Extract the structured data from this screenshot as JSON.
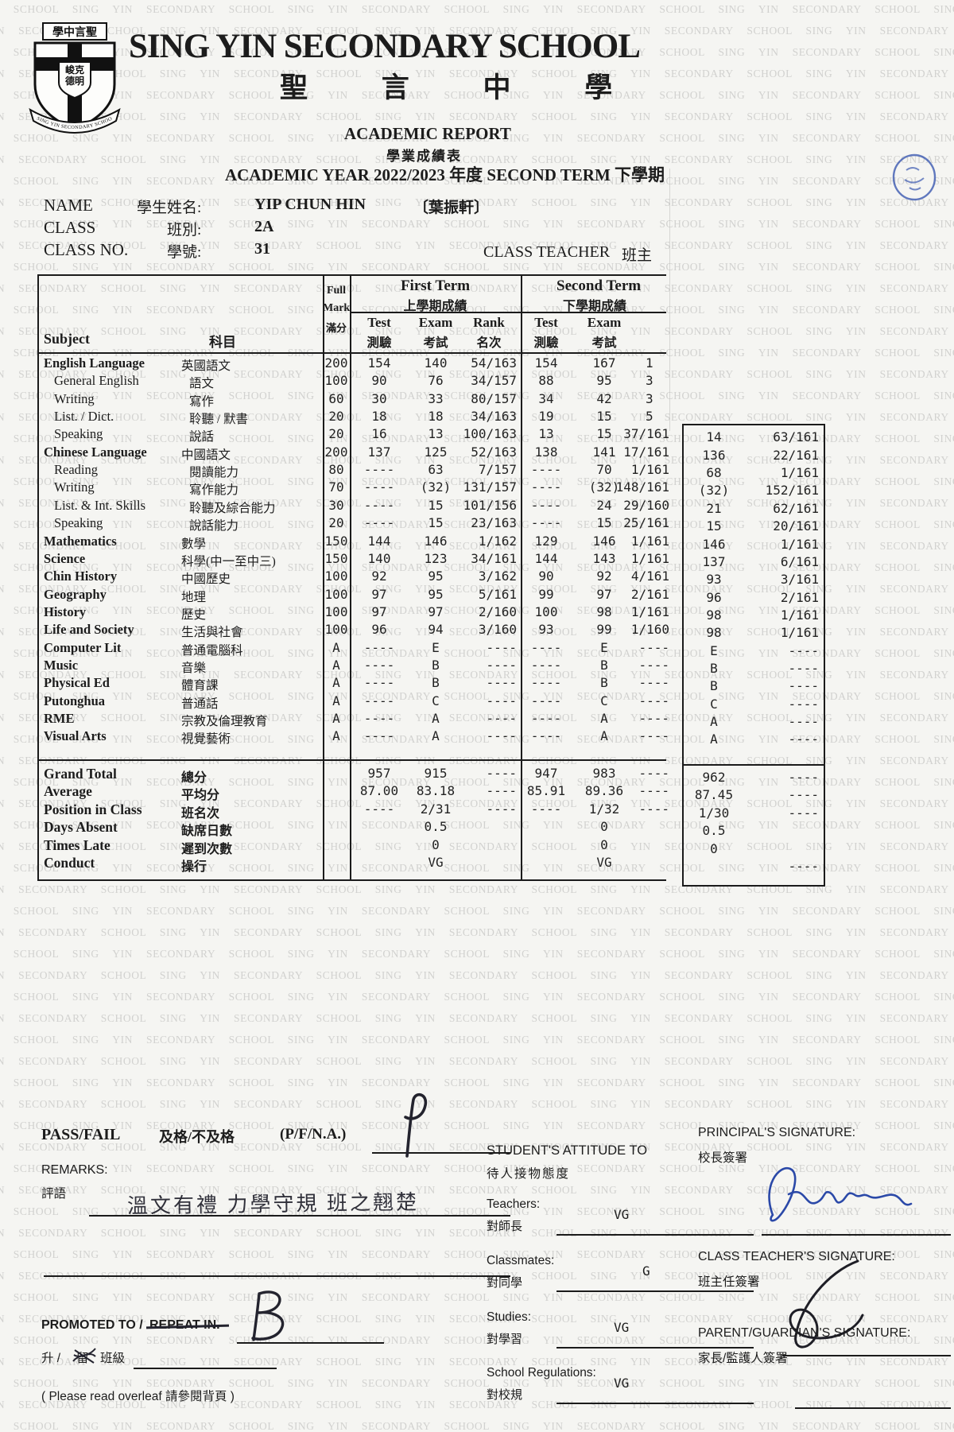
{
  "watermark_text": "SING YIN SECONDARY SCHOOL",
  "header": {
    "school_name_en": "SING YIN SECONDARY SCHOOL",
    "school_name_zh": "聖 言 中 學",
    "crest": {
      "banner_text": "學中言聖",
      "motto_line1": "峻克",
      "motto_line2": "德明",
      "ribbon_text": "SING YIN SECONDARY SCHOOL"
    },
    "report_title_en": "ACADEMIC REPORT",
    "report_title_zh": "學業成績表",
    "year_line": "ACADEMIC YEAR 2022/2023 年度 SECOND TERM 下學期",
    "stamp_color": "#3b59b0"
  },
  "student": {
    "name_label_en": "NAME",
    "name_label_zh": "學生姓名:",
    "name_value": "YIP CHUN HIN",
    "name_value_zh": "〔葉振軒〕",
    "class_label_en": "CLASS",
    "class_label_zh": "班別:",
    "class_value": "2A",
    "class_no_label_en": "CLASS NO.",
    "class_no_label_zh": "學號:",
    "class_no_value": "31",
    "class_teacher_label_en": "CLASS TEACHER",
    "class_teacher_label_zh": "班主"
  },
  "table": {
    "headers": {
      "subject_en": "Subject",
      "subject_zh": "科目",
      "full_1": "Full",
      "full_2": "Mark",
      "full_3": "滿分",
      "first_term_en": "First Term",
      "first_term_zh": "上學期成績",
      "second_term_en": "Second Term",
      "second_term_zh": "下學期成績",
      "test_en": "Test",
      "test_zh": "測驗",
      "exam_en": "Exam",
      "exam_zh": "考試",
      "rank_en": "Rank",
      "rank_zh": "名次"
    },
    "rows": [
      {
        "en": "English Language",
        "zh": "英國語文",
        "bold": true,
        "full": "200",
        "ft": [
          "154",
          "140",
          "54/163"
        ],
        "st": [
          "154",
          "167",
          "1"
        ],
        "st_cut": true,
        "ov": [
          "",
          ""
        ]
      },
      {
        "en": "General English",
        "zh": "語文",
        "bold": false,
        "full": "100",
        "ft": [
          "90",
          "76",
          "34/157"
        ],
        "st": [
          "88",
          "95",
          "3"
        ],
        "st_cut": true,
        "ov": [
          "",
          ""
        ]
      },
      {
        "en": "Writing",
        "zh": "寫作",
        "bold": false,
        "full": "60",
        "ft": [
          "30",
          "33",
          "80/157"
        ],
        "st": [
          "34",
          "42",
          "3"
        ],
        "st_cut": true,
        "ov": [
          "",
          ""
        ]
      },
      {
        "en": "List. / Dict.",
        "zh": "聆聽 / 默書",
        "bold": false,
        "full": "20",
        "ft": [
          "18",
          "18",
          "34/163"
        ],
        "st": [
          "19",
          "15",
          "5"
        ],
        "st_cut": true,
        "ov": [
          "",
          ""
        ]
      },
      {
        "en": "Speaking",
        "zh": "說話",
        "bold": false,
        "full": "20",
        "ft": [
          "16",
          "13",
          "100/163"
        ],
        "st": [
          "13",
          "15",
          "37/161"
        ],
        "st_cut": false,
        "ov": [
          "14",
          "63/161"
        ]
      },
      {
        "en": "Chinese Language",
        "zh": "中國語文",
        "bold": true,
        "full": "200",
        "ft": [
          "137",
          "125",
          "52/163"
        ],
        "st": [
          "138",
          "141",
          "17/161"
        ],
        "st_cut": false,
        "ov": [
          "136",
          "22/161"
        ]
      },
      {
        "en": "Reading",
        "zh": "閱讀能力",
        "bold": false,
        "full": "80",
        "ft": [
          "----",
          "63",
          "7/157"
        ],
        "st": [
          "----",
          "70",
          "1/161"
        ],
        "st_cut": false,
        "ov": [
          "68",
          "1/161"
        ]
      },
      {
        "en": "Writing",
        "zh": "寫作能力",
        "bold": false,
        "full": "70",
        "ft": [
          "----",
          "(32)",
          "131/157"
        ],
        "st": [
          "----",
          "(32)",
          "148/161"
        ],
        "st_cut": false,
        "ov": [
          "(32)",
          "152/161"
        ]
      },
      {
        "en": "List. & Int. Skills",
        "zh": "聆聽及綜合能力",
        "bold": false,
        "full": "30",
        "ft": [
          "----",
          "15",
          "101/156"
        ],
        "st": [
          "----",
          "24",
          "29/160"
        ],
        "st_cut": false,
        "ov": [
          "21",
          "62/161"
        ]
      },
      {
        "en": "Speaking",
        "zh": "說話能力",
        "bold": false,
        "full": "20",
        "ft": [
          "----",
          "15",
          "23/163"
        ],
        "st": [
          "----",
          "15",
          "25/161"
        ],
        "st_cut": false,
        "ov": [
          "15",
          "20/161"
        ]
      },
      {
        "en": "Mathematics",
        "zh": "數學",
        "bold": true,
        "full": "150",
        "ft": [
          "144",
          "146",
          "1/162"
        ],
        "st": [
          "129",
          "146",
          "1/161"
        ],
        "st_cut": false,
        "ov": [
          "146",
          "1/161"
        ]
      },
      {
        "en": "Science",
        "zh": "科學(中一至中三)",
        "bold": true,
        "full": "150",
        "ft": [
          "140",
          "123",
          "34/161"
        ],
        "st": [
          "144",
          "143",
          "1/161"
        ],
        "st_cut": false,
        "ov": [
          "137",
          "6/161"
        ]
      },
      {
        "en": "Chin History",
        "zh": "中國歷史",
        "bold": true,
        "full": "100",
        "ft": [
          "92",
          "95",
          "3/162"
        ],
        "st": [
          "90",
          "92",
          "4/161"
        ],
        "st_cut": false,
        "ov": [
          "93",
          "3/161"
        ]
      },
      {
        "en": "Geography",
        "zh": "地理",
        "bold": true,
        "full": "100",
        "ft": [
          "97",
          "95",
          "5/161"
        ],
        "st": [
          "99",
          "97",
          "2/161"
        ],
        "st_cut": false,
        "ov": [
          "96",
          "2/161"
        ]
      },
      {
        "en": "History",
        "zh": "歷史",
        "bold": true,
        "full": "100",
        "ft": [
          "97",
          "97",
          "2/160"
        ],
        "st": [
          "100",
          "98",
          "1/161"
        ],
        "st_cut": false,
        "ov": [
          "98",
          "1/161"
        ]
      },
      {
        "en": "Life and Society",
        "zh": "生活與社會",
        "bold": true,
        "full": "100",
        "ft": [
          "96",
          "94",
          "3/160"
        ],
        "st": [
          "93",
          "99",
          "1/160"
        ],
        "st_cut": false,
        "ov": [
          "98",
          "1/161"
        ]
      },
      {
        "en": "Computer Lit",
        "zh": "普通電腦科",
        "bold": true,
        "full": "A",
        "ft": [
          "----",
          "E",
          "----"
        ],
        "st": [
          "----",
          "E",
          "----"
        ],
        "st_cut": false,
        "ov": [
          "E",
          "----"
        ]
      },
      {
        "en": "Music",
        "zh": "音樂",
        "bold": true,
        "full": "A",
        "ft": [
          "----",
          "B",
          "----"
        ],
        "st": [
          "----",
          "B",
          "----"
        ],
        "st_cut": false,
        "ov": [
          "B",
          "----"
        ]
      },
      {
        "en": "Physical Ed",
        "zh": "體育課",
        "bold": true,
        "full": "A",
        "ft": [
          "----",
          "B",
          "----"
        ],
        "st": [
          "----",
          "B",
          "----"
        ],
        "st_cut": false,
        "ov": [
          "B",
          "----"
        ]
      },
      {
        "en": "Putonghua",
        "zh": "普通話",
        "bold": true,
        "full": "A",
        "ft": [
          "----",
          "C",
          "----"
        ],
        "st": [
          "----",
          "C",
          "----"
        ],
        "st_cut": false,
        "ov": [
          "C",
          "----"
        ]
      },
      {
        "en": "RME",
        "zh": "宗教及倫理教育",
        "bold": true,
        "full": "A",
        "ft": [
          "----",
          "A",
          "----"
        ],
        "st": [
          "----",
          "A",
          "----"
        ],
        "st_cut": false,
        "ov": [
          "A",
          "----"
        ]
      },
      {
        "en": "Visual Arts",
        "zh": "視覺藝術",
        "bold": true,
        "full": "A",
        "ft": [
          "----",
          "A",
          "----"
        ],
        "st": [
          "----",
          "A",
          "----"
        ],
        "st_cut": false,
        "ov": [
          "A",
          "----"
        ]
      }
    ],
    "summary": [
      {
        "en": "Grand Total",
        "zh": "總分",
        "ft": [
          "957",
          "915",
          "----"
        ],
        "st": [
          "947",
          "983",
          "----"
        ],
        "ov": [
          "962",
          "----"
        ]
      },
      {
        "en": "Average",
        "zh": "平均分",
        "ft": [
          "87.00",
          "83.18",
          "----"
        ],
        "st": [
          "85.91",
          "89.36",
          "----"
        ],
        "ov": [
          "87.45",
          "----"
        ]
      },
      {
        "en": "Position in Class",
        "zh": "班名次",
        "ft": [
          "----",
          "2/31",
          "----"
        ],
        "st": [
          "----",
          "1/32",
          "----"
        ],
        "ov": [
          "1/30",
          "----"
        ]
      },
      {
        "en": "Days Absent",
        "zh": "缺席日數",
        "ft": [
          "",
          "0.5",
          ""
        ],
        "st": [
          "",
          "0",
          ""
        ],
        "ov": [
          "0.5",
          ""
        ]
      },
      {
        "en": "Times Late",
        "zh": "遲到次數",
        "ft": [
          "",
          "0",
          ""
        ],
        "st": [
          "",
          "0",
          ""
        ],
        "ov": [
          "0",
          ""
        ]
      },
      {
        "en": "Conduct",
        "zh": "操行",
        "ft": [
          "",
          "VG",
          ""
        ],
        "st": [
          "",
          "VG",
          ""
        ],
        "ov": [
          "",
          "----"
        ]
      }
    ]
  },
  "bottom": {
    "passfail": {
      "label_en": "PASS/FAIL",
      "label_zh": "及格/不及格",
      "options": "(P/F/N.A.)",
      "value": "P"
    },
    "remarks": {
      "label_en": "REMARKS:",
      "label_zh": "評語",
      "value": "溫文有禮 力學守規 班之翹楚"
    },
    "attitude": {
      "title_en": "STUDENT'S ATTITUDE TO",
      "title_zh": "待人接物態度",
      "items": [
        {
          "en": "Teachers:",
          "zh": "對師長",
          "value": "VG"
        },
        {
          "en": "Classmates:",
          "zh": "對同學",
          "value": "G"
        },
        {
          "en": "Studies:",
          "zh": "對學習",
          "value": "VG"
        },
        {
          "en": "School Regulations:",
          "zh": "對校規",
          "value": "VG"
        }
      ]
    },
    "signatures": {
      "principal_en": "PRINCIPAL'S SIGNATURE:",
      "principal_zh": "校長簽署",
      "class_teacher_en": "CLASS TEACHER'S SIGNATURE:",
      "class_teacher_zh": "班主任簽署",
      "parent_en": "PARENT/GUARDIAN'S SIGNATURE:",
      "parent_zh": "家長/監護人簽署"
    },
    "promotion": {
      "label_en_1": "PROMOTED TO /",
      "label_en_2": "REPEAT IN.",
      "label_zh_1": "升 /",
      "label_zh_struck": "留",
      "label_zh_2": "班級",
      "value": "B"
    },
    "overleaf_note": "( Please read overleaf  請參閱背頁 )"
  }
}
